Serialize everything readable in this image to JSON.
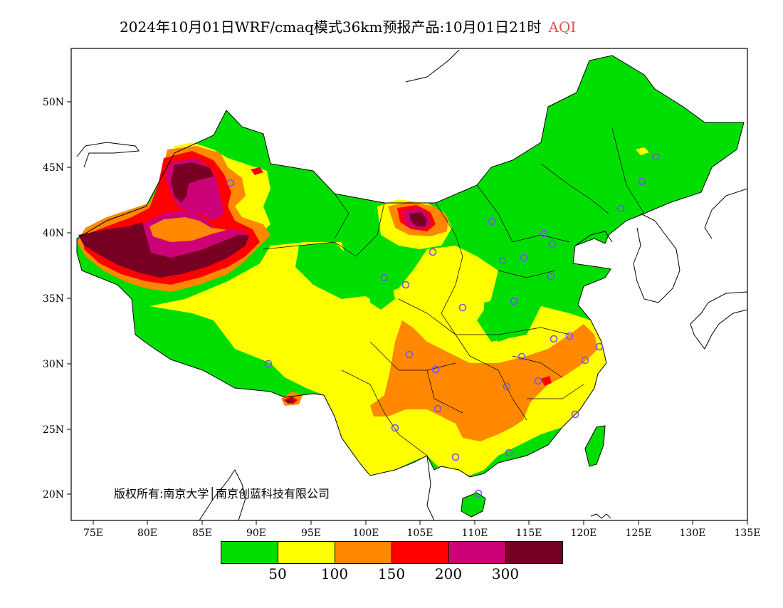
{
  "title": {
    "main": "2024年10月01日WRF/cmaq模式36km预报产品:10月01日21时",
    "variable": "AQI"
  },
  "copyright": "版权所有:南京大学│南京创蓝科技有限公司",
  "axes": {
    "lon_ticks": [
      "75E",
      "80E",
      "85E",
      "90E",
      "95E",
      "100E",
      "105E",
      "110E",
      "115E",
      "120E",
      "125E",
      "130E",
      "135E"
    ],
    "lat_ticks": [
      "20N",
      "25N",
      "30N",
      "35N",
      "40N",
      "45N",
      "50N"
    ]
  },
  "legend": {
    "colors": [
      "#00dd00",
      "#ffff00",
      "#ff8800",
      "#ff0000",
      "#cc0077",
      "#770022"
    ],
    "labels": [
      "50",
      "100",
      "150",
      "200",
      "300"
    ]
  },
  "map": {
    "projection": "lat-lon",
    "lon_range": [
      73,
      135
    ],
    "lat_range": [
      18,
      54
    ]
  }
}
